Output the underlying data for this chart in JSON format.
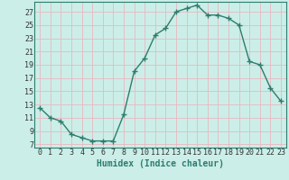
{
  "x": [
    0,
    1,
    2,
    3,
    4,
    5,
    6,
    7,
    8,
    9,
    10,
    11,
    12,
    13,
    14,
    15,
    16,
    17,
    18,
    19,
    20,
    21,
    22,
    23
  ],
  "y": [
    12.5,
    11.0,
    10.5,
    8.5,
    8.0,
    7.5,
    7.5,
    7.5,
    11.5,
    18.0,
    20.0,
    23.5,
    24.5,
    27.0,
    27.5,
    28.0,
    26.5,
    26.5,
    26.0,
    25.0,
    19.5,
    19.0,
    15.5,
    13.5
  ],
  "line_color": "#2e7d6e",
  "marker": "+",
  "marker_size": 4,
  "bg_color": "#b3e0d8",
  "plot_bg_color": "#cceee8",
  "grid_color_major": "#e8b8c0",
  "grid_color_minor": "#cfe8e4",
  "xlabel": "Humidex (Indice chaleur)",
  "xlim": [
    -0.5,
    23.5
  ],
  "ylim": [
    6.5,
    28.5
  ],
  "yticks": [
    7,
    9,
    11,
    13,
    15,
    17,
    19,
    21,
    23,
    25,
    27
  ],
  "xticks": [
    0,
    1,
    2,
    3,
    4,
    5,
    6,
    7,
    8,
    9,
    10,
    11,
    12,
    13,
    14,
    15,
    16,
    17,
    18,
    19,
    20,
    21,
    22,
    23
  ],
  "xlabel_fontsize": 7,
  "tick_fontsize": 6,
  "line_width": 1.0,
  "marker_color": "#2e7d6e"
}
